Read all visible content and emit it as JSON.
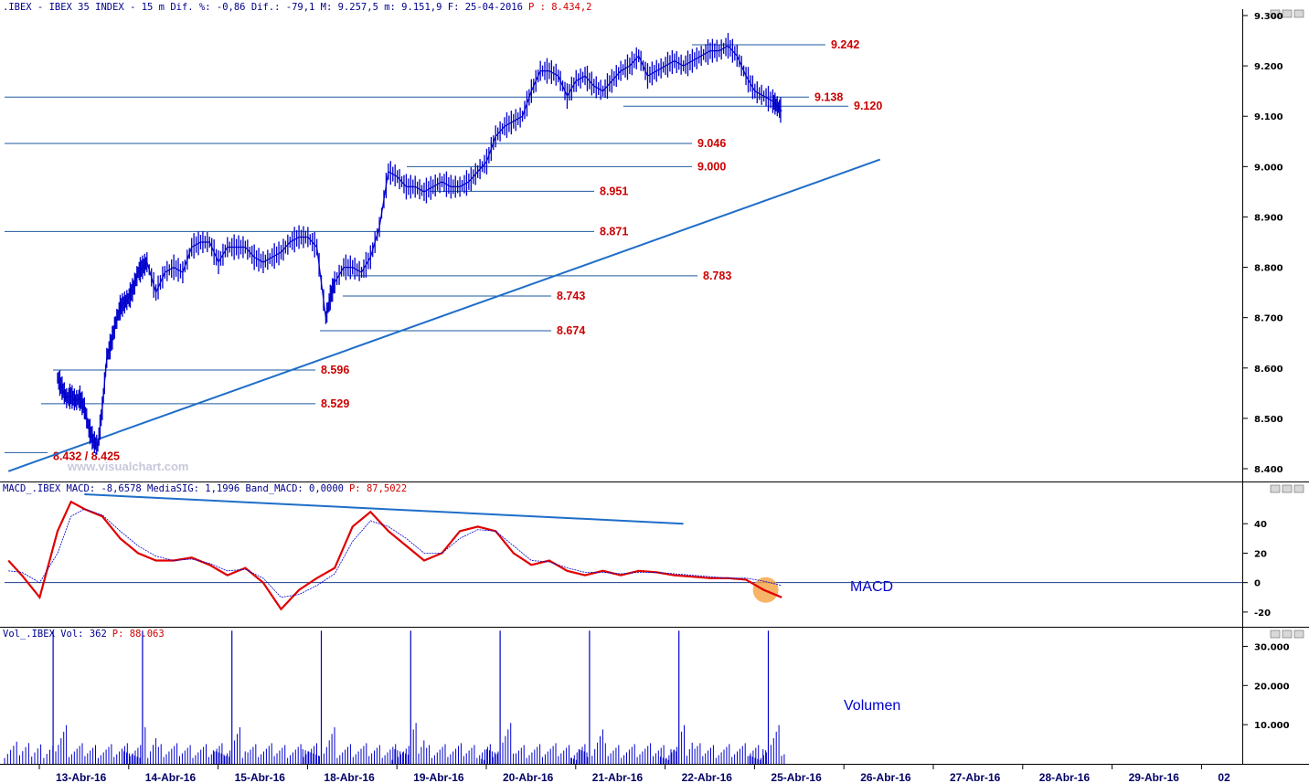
{
  "header": {
    "price": ".IBEX - IBEX 35 INDEX -   15 m Dif. %: -0,86 Dif.: -79,1 M: 9.257,5 m: 9.151,9 F: 25-04-2016",
    "price_p": "P : 8.434,2",
    "macd": "MACD_.IBEX MACD: -8,6578 MediaSIG: 1,1996 Band_MACD: 0,0000",
    "macd_p": "P: 87,5022",
    "vol": "Vol_.IBEX Vol: 362",
    "vol_p": "P: 88.063"
  },
  "watermark": "www.visualchart.com",
  "panel_labels": {
    "macd": "MACD",
    "volume": "Volumen"
  },
  "colors": {
    "price": "#0000cc",
    "trend": "#1e6ec8",
    "levels": "#1e5aa0",
    "level_text": "#cc0000",
    "macd": "#e00000",
    "signal": "#0000cc",
    "volume": "#0000cc",
    "highlight": "#f5a040"
  },
  "chart_data": [
    {
      "type": "line",
      "title": ".IBEX - IBEX 35 INDEX - 15 m",
      "x_categories": [
        "13-Abr-16",
        "14-Abr-16",
        "15-Abr-16",
        "18-Abr-16",
        "19-Abr-16",
        "20-Abr-16",
        "21-Abr-16",
        "22-Abr-16",
        "25-Abr-16",
        "26-Abr-16",
        "27-Abr-16",
        "28-Abr-16",
        "29-Abr-16",
        "02"
      ],
      "y_ticks": [
        "8.400",
        "8.500",
        "8.600",
        "8.700",
        "8.800",
        "8.900",
        "9.000",
        "9.100",
        "9.200",
        "9.300"
      ],
      "ylim": [
        8400,
        9300
      ],
      "series": [
        {
          "x": [
            0,
            0.05,
            0.1,
            0.15,
            0.2,
            0.25,
            0.3,
            0.35,
            0.4,
            0.45,
            0.5,
            0.55,
            0.6,
            0.65,
            0.7,
            0.75,
            0.8,
            0.85,
            0.9,
            0.95,
            1.0,
            1.1,
            1.2,
            1.3,
            1.4,
            1.5,
            1.6,
            1.7,
            1.8,
            1.9,
            2.0,
            2.1,
            2.2,
            2.3,
            2.4,
            2.5,
            2.6,
            2.7,
            2.8,
            2.9,
            3.0,
            3.05,
            3.1,
            3.2,
            3.3,
            3.4,
            3.5,
            3.6,
            3.7,
            3.8,
            3.9,
            4.0,
            4.1,
            4.2,
            4.3,
            4.4,
            4.5,
            4.6,
            4.7,
            4.8,
            4.9,
            5.0,
            5.1,
            5.2,
            5.3,
            5.4,
            5.5,
            5.6,
            5.7,
            5.8,
            5.9,
            6.0,
            6.1,
            6.2,
            6.3,
            6.4,
            6.5,
            6.6,
            6.7,
            6.8,
            6.9,
            7.0,
            7.1,
            7.2,
            7.3,
            7.4,
            7.5,
            7.6,
            7.7,
            7.8,
            7.9,
            8.0,
            8.05,
            8.1
          ],
          "y": [
            8580,
            8560,
            8540,
            8545,
            8535,
            8540,
            8520,
            8480,
            8455,
            8445,
            8520,
            8620,
            8650,
            8690,
            8720,
            8730,
            8740,
            8760,
            8790,
            8800,
            8810,
            8750,
            8790,
            8800,
            8790,
            8840,
            8850,
            8850,
            8810,
            8840,
            8840,
            8840,
            8820,
            8810,
            8820,
            8830,
            8850,
            8860,
            8860,
            8840,
            8700,
            8740,
            8770,
            8800,
            8800,
            8790,
            8820,
            8880,
            8990,
            8980,
            8960,
            8960,
            8950,
            8960,
            8970,
            8960,
            8960,
            8970,
            8990,
            9010,
            9060,
            9080,
            9090,
            9100,
            9150,
            9190,
            9190,
            9180,
            9140,
            9170,
            9180,
            9160,
            9150,
            9170,
            9190,
            9200,
            9220,
            9180,
            9190,
            9200,
            9210,
            9200,
            9210,
            9220,
            9230,
            9230,
            9240,
            9220,
            9180,
            9150,
            9140,
            9130,
            9120,
            9110
          ]
        }
      ],
      "levels": [
        {
          "label": "9.242",
          "value": 9242
        },
        {
          "label": "9.138",
          "value": 9138
        },
        {
          "label": "9.120",
          "value": 9120
        },
        {
          "label": "9.046",
          "value": 9046
        },
        {
          "label": "9.000",
          "value": 9000
        },
        {
          "label": "8.951",
          "value": 8951
        },
        {
          "label": "8.871",
          "value": 8871
        },
        {
          "label": "8.783",
          "value": 8783
        },
        {
          "label": "8.743",
          "value": 8743
        },
        {
          "label": "8.674",
          "value": 8674
        },
        {
          "label": "8.596",
          "value": 8596
        },
        {
          "label": "8.529",
          "value": 8529
        },
        {
          "label": "8.432 / 8.425",
          "value": 8432
        }
      ],
      "trendline": {
        "x": [
          -0.55,
          9.2
        ],
        "y": [
          8395,
          9014
        ]
      }
    },
    {
      "type": "line",
      "title": "MACD_.IBEX",
      "y_ticks": [
        "-20",
        "0",
        "20",
        "40"
      ],
      "ylim": [
        -30,
        60
      ],
      "series": [
        {
          "name": "MACD",
          "x": [
            -0.55,
            -0.4,
            -0.2,
            0,
            0.15,
            0.3,
            0.5,
            0.7,
            0.9,
            1.1,
            1.3,
            1.5,
            1.7,
            1.9,
            2.1,
            2.3,
            2.5,
            2.7,
            2.9,
            3.1,
            3.3,
            3.5,
            3.7,
            3.9,
            4.1,
            4.3,
            4.5,
            4.7,
            4.9,
            5.1,
            5.3,
            5.5,
            5.7,
            5.9,
            6.1,
            6.3,
            6.5,
            6.7,
            6.9,
            7.1,
            7.3,
            7.5,
            7.7,
            7.9,
            8.1
          ],
          "y": [
            15,
            5,
            -10,
            35,
            55,
            50,
            45,
            30,
            20,
            15,
            15,
            17,
            12,
            5,
            10,
            0,
            -18,
            -5,
            3,
            10,
            38,
            48,
            35,
            25,
            15,
            20,
            35,
            38,
            35,
            20,
            12,
            15,
            8,
            5,
            8,
            5,
            8,
            7,
            5,
            4,
            3,
            3,
            2,
            -5,
            -10
          ]
        },
        {
          "name": "MediaSIG",
          "x": [
            -0.55,
            -0.4,
            -0.2,
            0,
            0.15,
            0.3,
            0.5,
            0.7,
            0.9,
            1.1,
            1.3,
            1.5,
            1.7,
            1.9,
            2.1,
            2.3,
            2.5,
            2.7,
            2.9,
            3.1,
            3.3,
            3.5,
            3.7,
            3.9,
            4.1,
            4.3,
            4.5,
            4.7,
            4.9,
            5.1,
            5.3,
            5.5,
            5.7,
            5.9,
            6.1,
            6.3,
            6.5,
            6.7,
            6.9,
            7.1,
            7.3,
            7.5,
            7.7,
            7.9,
            8.1
          ],
          "y": [
            8,
            7,
            0,
            20,
            45,
            50,
            46,
            35,
            25,
            18,
            15,
            16,
            13,
            8,
            9,
            3,
            -10,
            -8,
            -2,
            6,
            28,
            42,
            38,
            30,
            20,
            20,
            30,
            36,
            35,
            25,
            15,
            14,
            10,
            7,
            7,
            6,
            7,
            7,
            6,
            5,
            4,
            3,
            3,
            1,
            -2
          ]
        }
      ],
      "zero_line": 0,
      "trendline": {
        "x": [
          0.3,
          7.0
        ],
        "y": [
          60,
          40
        ]
      }
    },
    {
      "type": "bar",
      "title": "Vol_.IBEX",
      "y_ticks": [
        "10.000",
        "20.000",
        "30.000"
      ],
      "ylim": [
        0,
        35000
      ],
      "spikes_x": [
        -0.05,
        0.95,
        1.95,
        2.95,
        3.95,
        4.95,
        5.95,
        6.95,
        7.95
      ],
      "spike_value": 34000,
      "base_value": 5000
    }
  ]
}
